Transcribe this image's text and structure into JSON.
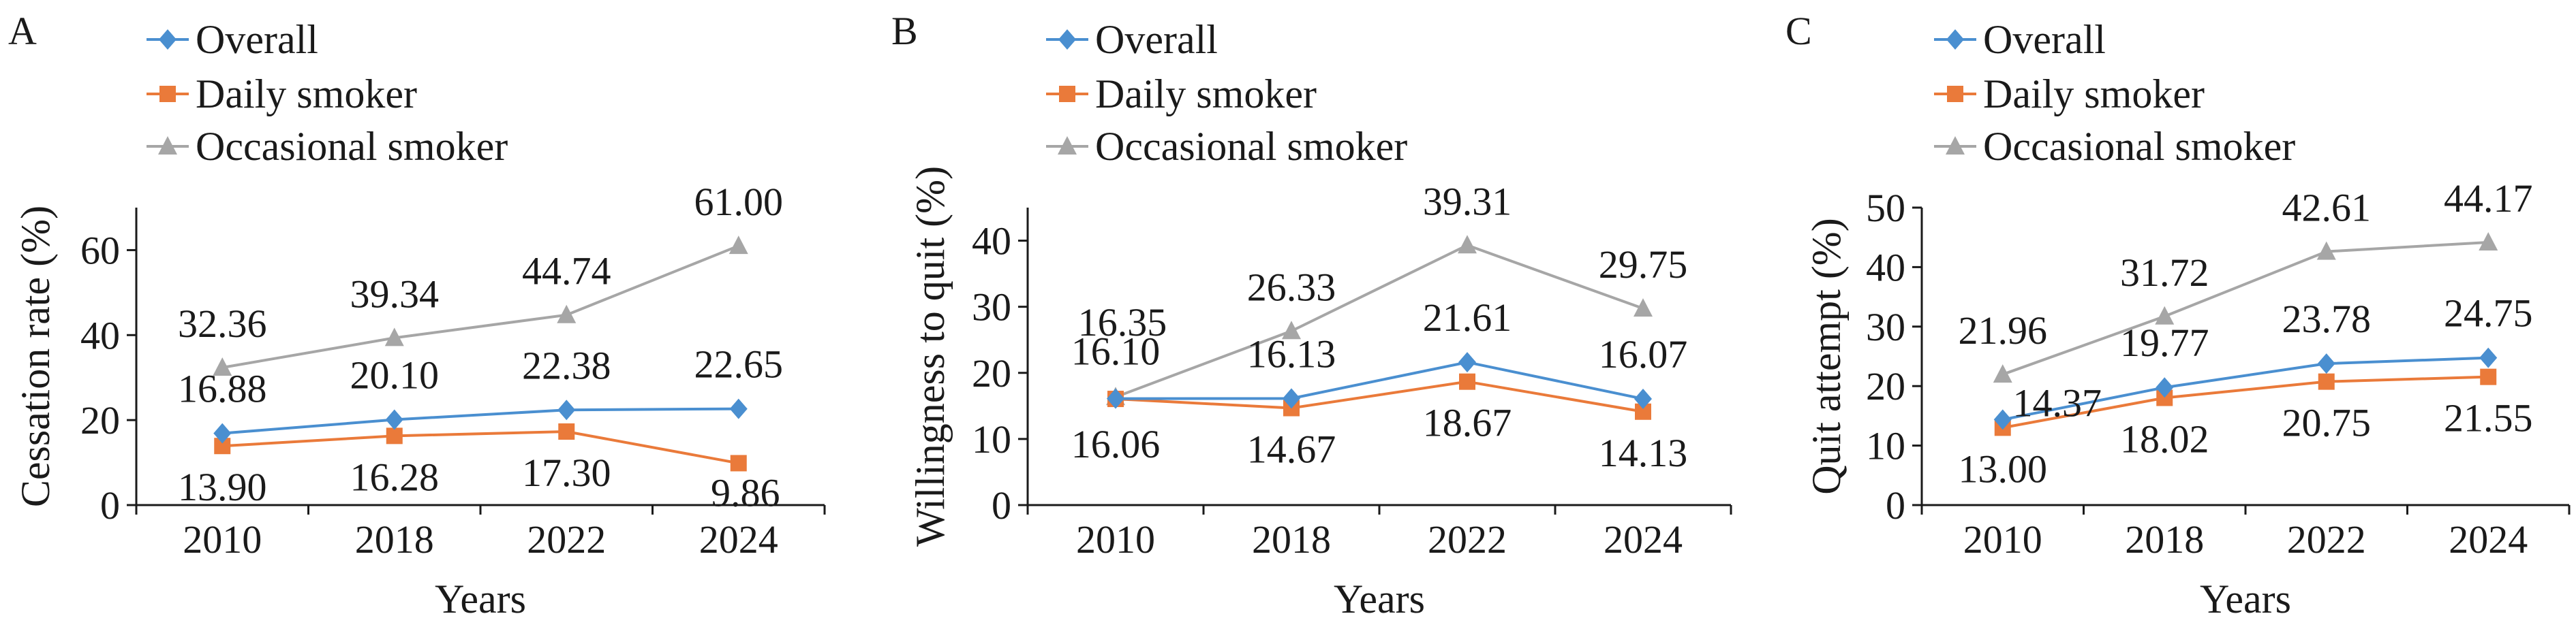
{
  "figure": {
    "colors": {
      "overall": "#4a8fd0",
      "daily": "#ea7a3a",
      "occasional": "#a6a6a6",
      "axis": "#1a1a1a"
    },
    "markers": {
      "overall": "diamond",
      "daily": "square",
      "occasional": "triangle"
    }
  },
  "chart_data": [
    {
      "panel": "A",
      "type": "line",
      "x": [
        "2010",
        "2018",
        "2022",
        "2024"
      ],
      "xlabel": "Years",
      "ylabel": "Cessation rate (%)",
      "ylim": [
        0,
        70
      ],
      "yticks": [
        0,
        20,
        40,
        60
      ],
      "grid": false,
      "legend_position": "top-left",
      "series": [
        {
          "key": "overall",
          "name": "Overall",
          "values": [
            16.88,
            20.1,
            22.38,
            22.65
          ],
          "labels": [
            "16.88",
            "20.10",
            "22.38",
            "22.65"
          ]
        },
        {
          "key": "daily",
          "name": "Daily smoker",
          "values": [
            13.9,
            16.28,
            17.3,
            9.86
          ],
          "labels": [
            "13.90",
            "16.28",
            "17.30",
            "9.86"
          ]
        },
        {
          "key": "occasional",
          "name": "Occasional smoker",
          "values": [
            32.36,
            39.34,
            44.74,
            61.0
          ],
          "labels": [
            "32.36",
            "39.34",
            "44.74",
            "61.00"
          ]
        }
      ]
    },
    {
      "panel": "B",
      "type": "line",
      "x": [
        "2010",
        "2018",
        "2022",
        "2024"
      ],
      "xlabel": "Years",
      "ylabel": "Willingness to quit (%)",
      "ylim": [
        0,
        45
      ],
      "yticks": [
        0,
        10,
        20,
        30,
        40
      ],
      "grid": false,
      "legend_position": "top-left",
      "series": [
        {
          "key": "overall",
          "name": "Overall",
          "values": [
            16.1,
            16.13,
            21.61,
            16.07
          ],
          "labels": [
            "16.10",
            "16.13",
            "21.61",
            "16.07"
          ]
        },
        {
          "key": "daily",
          "name": "Daily smoker",
          "values": [
            16.06,
            14.67,
            18.67,
            14.13
          ],
          "labels": [
            "16.06",
            "14.67",
            "18.67",
            "14.13"
          ]
        },
        {
          "key": "occasional",
          "name": "Occasional smoker",
          "values": [
            16.35,
            26.33,
            39.31,
            29.75
          ],
          "labels": [
            "16.35",
            "26.33",
            "39.31",
            "29.75"
          ]
        }
      ]
    },
    {
      "panel": "C",
      "type": "line",
      "x": [
        "2010",
        "2018",
        "2022",
        "2024"
      ],
      "xlabel": "Years",
      "ylabel": "Quit attempt (%)",
      "ylim": [
        0,
        50
      ],
      "yticks": [
        0,
        10,
        20,
        30,
        40,
        50
      ],
      "grid": false,
      "legend_position": "top-left",
      "series": [
        {
          "key": "overall",
          "name": "Overall",
          "values": [
            14.37,
            19.77,
            23.78,
            24.75
          ],
          "labels": [
            "14.37",
            "19.77",
            "23.78",
            "24.75"
          ]
        },
        {
          "key": "daily",
          "name": "Daily smoker",
          "values": [
            13.0,
            18.02,
            20.75,
            21.55
          ],
          "labels": [
            "13.00",
            "18.02",
            "20.75",
            "21.55"
          ]
        },
        {
          "key": "occasional",
          "name": "Occasional smoker",
          "values": [
            21.96,
            31.72,
            42.61,
            44.17
          ],
          "labels": [
            "21.96",
            "31.72",
            "42.61",
            "44.17"
          ]
        }
      ]
    }
  ]
}
